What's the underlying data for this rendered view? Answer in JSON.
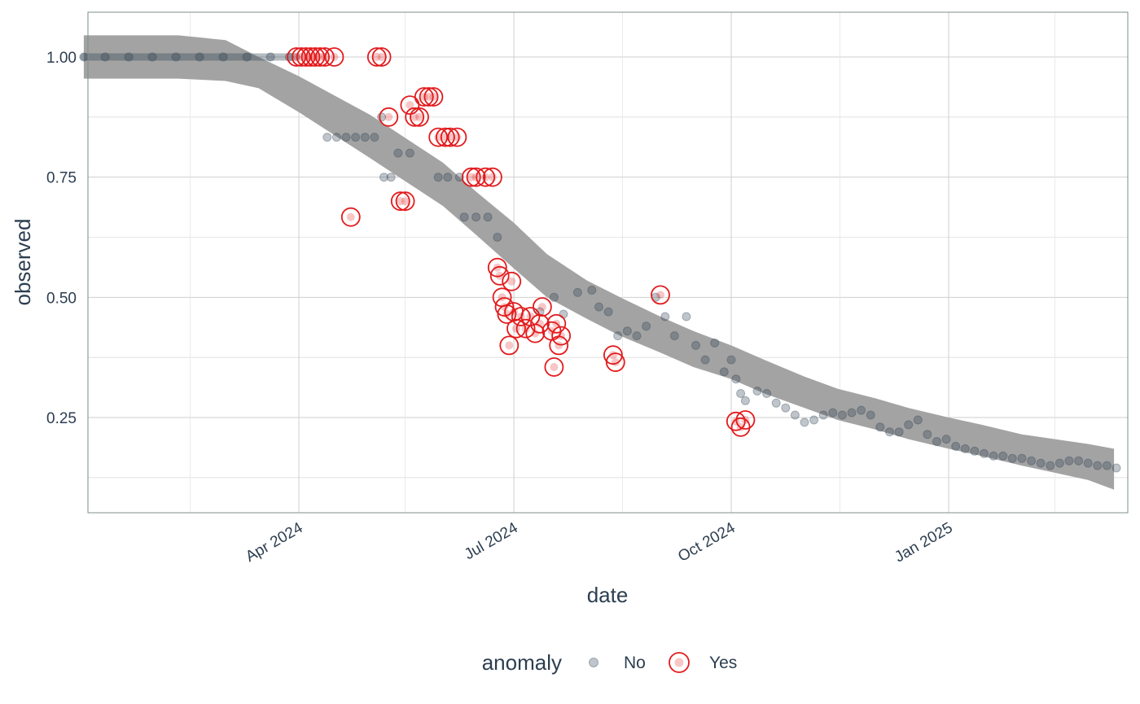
{
  "chart_data": {
    "type": "scatter",
    "xlabel": "date",
    "ylabel": "observed",
    "x_axis": {
      "scale": "date",
      "range": [
        "2024-01-01",
        "2025-03-20"
      ],
      "ticks": [
        {
          "date": "2024-04-01",
          "label": "Apr 2024"
        },
        {
          "date": "2024-07-01",
          "label": "Jul 2024"
        },
        {
          "date": "2024-10-01",
          "label": "Oct 2024"
        },
        {
          "date": "2025-01-01",
          "label": "Jan 2025"
        }
      ]
    },
    "y_axis": {
      "range": [
        0.065,
        1.09
      ],
      "ticks": [
        {
          "value": 0.25,
          "label": "0.25"
        },
        {
          "value": 0.5,
          "label": "0.50"
        },
        {
          "value": 0.75,
          "label": "0.75"
        },
        {
          "value": 1.0,
          "label": "1.00"
        }
      ],
      "minor_ticks": [
        0.125,
        0.375,
        0.625,
        0.875
      ]
    },
    "grid": true,
    "legend": {
      "title": "anomaly",
      "placement": "bottom",
      "entries": [
        {
          "label": "No",
          "color": "#2c3e50"
        },
        {
          "label": "Yes",
          "color": "#e31a1c"
        }
      ]
    },
    "colors": {
      "band": "#a3a3a3",
      "normal": "#2c3e50",
      "anomaly": "#e31a1c",
      "grid": "#d6d6d6"
    },
    "band": [
      {
        "date": "2024-01-01",
        "lo": 0.955,
        "hi": 1.045
      },
      {
        "date": "2024-02-10",
        "lo": 0.955,
        "hi": 1.045
      },
      {
        "date": "2024-03-01",
        "lo": 0.95,
        "hi": 1.035
      },
      {
        "date": "2024-03-15",
        "lo": 0.935,
        "hi": 1.0
      },
      {
        "date": "2024-04-01",
        "lo": 0.885,
        "hi": 0.96
      },
      {
        "date": "2024-05-01",
        "lo": 0.79,
        "hi": 0.88
      },
      {
        "date": "2024-06-01",
        "lo": 0.69,
        "hi": 0.78
      },
      {
        "date": "2024-06-15",
        "lo": 0.63,
        "hi": 0.72
      },
      {
        "date": "2024-07-01",
        "lo": 0.56,
        "hi": 0.655
      },
      {
        "date": "2024-07-15",
        "lo": 0.5,
        "hi": 0.59
      },
      {
        "date": "2024-08-01",
        "lo": 0.455,
        "hi": 0.535
      },
      {
        "date": "2024-08-15",
        "lo": 0.42,
        "hi": 0.5
      },
      {
        "date": "2024-09-01",
        "lo": 0.385,
        "hi": 0.46
      },
      {
        "date": "2024-09-15",
        "lo": 0.355,
        "hi": 0.43
      },
      {
        "date": "2024-10-01",
        "lo": 0.33,
        "hi": 0.4
      },
      {
        "date": "2024-10-15",
        "lo": 0.3,
        "hi": 0.37
      },
      {
        "date": "2024-11-01",
        "lo": 0.27,
        "hi": 0.335
      },
      {
        "date": "2024-11-15",
        "lo": 0.245,
        "hi": 0.31
      },
      {
        "date": "2024-12-01",
        "lo": 0.225,
        "hi": 0.29
      },
      {
        "date": "2024-12-15",
        "lo": 0.205,
        "hi": 0.27
      },
      {
        "date": "2025-01-01",
        "lo": 0.185,
        "hi": 0.25
      },
      {
        "date": "2025-01-15",
        "lo": 0.17,
        "hi": 0.235
      },
      {
        "date": "2025-02-01",
        "lo": 0.15,
        "hi": 0.215
      },
      {
        "date": "2025-02-15",
        "lo": 0.135,
        "hi": 0.205
      },
      {
        "date": "2025-03-01",
        "lo": 0.12,
        "hi": 0.195
      },
      {
        "date": "2025-03-12",
        "lo": 0.1,
        "hi": 0.185
      }
    ],
    "series": [
      {
        "name": "No",
        "points": [
          [
            "2024-01-01",
            1.0
          ],
          [
            "2024-01-10",
            1.0
          ],
          [
            "2024-01-20",
            1.0
          ],
          [
            "2024-01-30",
            1.0
          ],
          [
            "2024-02-09",
            1.0
          ],
          [
            "2024-02-19",
            1.0
          ],
          [
            "2024-02-29",
            1.0
          ],
          [
            "2024-03-10",
            1.0
          ],
          [
            "2024-03-20",
            1.0
          ],
          [
            "2024-03-28",
            1.0
          ],
          [
            "2024-04-13",
            0.833
          ],
          [
            "2024-04-17",
            0.833
          ],
          [
            "2024-04-21",
            0.833
          ],
          [
            "2024-04-25",
            0.833
          ],
          [
            "2024-04-29",
            0.833
          ],
          [
            "2024-05-03",
            0.833
          ],
          [
            "2024-05-06",
            0.875
          ],
          [
            "2024-05-07",
            0.75
          ],
          [
            "2024-05-10",
            0.75
          ],
          [
            "2024-05-13",
            0.8
          ],
          [
            "2024-05-18",
            0.8
          ],
          [
            "2024-05-30",
            0.75
          ],
          [
            "2024-06-03",
            0.75
          ],
          [
            "2024-06-08",
            0.75
          ],
          [
            "2024-06-10",
            0.667
          ],
          [
            "2024-06-15",
            0.667
          ],
          [
            "2024-06-20",
            0.667
          ],
          [
            "2024-06-24",
            0.625
          ],
          [
            "2024-07-12",
            0.47
          ],
          [
            "2024-07-18",
            0.5
          ],
          [
            "2024-07-22",
            0.465
          ],
          [
            "2024-07-28",
            0.51
          ],
          [
            "2024-08-03",
            0.515
          ],
          [
            "2024-08-06",
            0.48
          ],
          [
            "2024-08-10",
            0.47
          ],
          [
            "2024-08-14",
            0.42
          ],
          [
            "2024-08-18",
            0.43
          ],
          [
            "2024-08-22",
            0.42
          ],
          [
            "2024-08-26",
            0.44
          ],
          [
            "2024-08-30",
            0.5
          ],
          [
            "2024-09-03",
            0.46
          ],
          [
            "2024-09-07",
            0.42
          ],
          [
            "2024-09-12",
            0.46
          ],
          [
            "2024-09-16",
            0.4
          ],
          [
            "2024-09-20",
            0.37
          ],
          [
            "2024-09-24",
            0.405
          ],
          [
            "2024-09-28",
            0.345
          ],
          [
            "2024-10-01",
            0.37
          ],
          [
            "2024-10-03",
            0.33
          ],
          [
            "2024-10-05",
            0.3
          ],
          [
            "2024-10-07",
            0.285
          ],
          [
            "2024-10-12",
            0.305
          ],
          [
            "2024-10-16",
            0.3
          ],
          [
            "2024-10-20",
            0.28
          ],
          [
            "2024-10-24",
            0.27
          ],
          [
            "2024-10-28",
            0.255
          ],
          [
            "2024-11-01",
            0.24
          ],
          [
            "2024-11-05",
            0.245
          ],
          [
            "2024-11-09",
            0.255
          ],
          [
            "2024-11-13",
            0.26
          ],
          [
            "2024-11-17",
            0.255
          ],
          [
            "2024-11-21",
            0.26
          ],
          [
            "2024-11-25",
            0.265
          ],
          [
            "2024-11-29",
            0.255
          ],
          [
            "2024-12-03",
            0.23
          ],
          [
            "2024-12-07",
            0.22
          ],
          [
            "2024-12-11",
            0.22
          ],
          [
            "2024-12-15",
            0.235
          ],
          [
            "2024-12-19",
            0.245
          ],
          [
            "2024-12-23",
            0.215
          ],
          [
            "2024-12-27",
            0.2
          ],
          [
            "2024-12-31",
            0.205
          ],
          [
            "2025-01-04",
            0.19
          ],
          [
            "2025-01-08",
            0.185
          ],
          [
            "2025-01-12",
            0.18
          ],
          [
            "2025-01-16",
            0.175
          ],
          [
            "2025-01-20",
            0.17
          ],
          [
            "2025-01-24",
            0.17
          ],
          [
            "2025-01-28",
            0.165
          ],
          [
            "2025-02-01",
            0.165
          ],
          [
            "2025-02-05",
            0.16
          ],
          [
            "2025-02-09",
            0.155
          ],
          [
            "2025-02-13",
            0.15
          ],
          [
            "2025-02-17",
            0.155
          ],
          [
            "2025-02-21",
            0.16
          ],
          [
            "2025-02-25",
            0.16
          ],
          [
            "2025-03-01",
            0.155
          ],
          [
            "2025-03-05",
            0.15
          ],
          [
            "2025-03-09",
            0.15
          ],
          [
            "2025-03-13",
            0.145
          ]
        ]
      },
      {
        "name": "Yes",
        "points": [
          [
            "2024-03-31",
            1.0
          ],
          [
            "2024-04-02",
            1.0
          ],
          [
            "2024-04-04",
            1.0
          ],
          [
            "2024-04-06",
            1.0
          ],
          [
            "2024-04-08",
            1.0
          ],
          [
            "2024-04-10",
            1.0
          ],
          [
            "2024-04-12",
            1.0
          ],
          [
            "2024-04-16",
            1.0
          ],
          [
            "2024-04-23",
            0.667
          ],
          [
            "2024-05-04",
            1.0
          ],
          [
            "2024-05-06",
            1.0
          ],
          [
            "2024-05-09",
            0.875
          ],
          [
            "2024-05-14",
            0.7
          ],
          [
            "2024-05-16",
            0.7
          ],
          [
            "2024-05-18",
            0.9
          ],
          [
            "2024-05-20",
            0.875
          ],
          [
            "2024-05-22",
            0.875
          ],
          [
            "2024-05-24",
            0.917
          ],
          [
            "2024-05-26",
            0.917
          ],
          [
            "2024-05-28",
            0.917
          ],
          [
            "2024-05-30",
            0.833
          ],
          [
            "2024-06-02",
            0.833
          ],
          [
            "2024-06-04",
            0.833
          ],
          [
            "2024-06-07",
            0.833
          ],
          [
            "2024-06-13",
            0.75
          ],
          [
            "2024-06-15",
            0.75
          ],
          [
            "2024-06-19",
            0.75
          ],
          [
            "2024-06-22",
            0.75
          ],
          [
            "2024-06-24",
            0.562
          ],
          [
            "2024-06-25",
            0.545
          ],
          [
            "2024-06-26",
            0.5
          ],
          [
            "2024-06-27",
            0.48
          ],
          [
            "2024-06-28",
            0.465
          ],
          [
            "2024-06-29",
            0.4
          ],
          [
            "2024-06-30",
            0.533
          ],
          [
            "2024-07-01",
            0.47
          ],
          [
            "2024-07-02",
            0.435
          ],
          [
            "2024-07-04",
            0.46
          ],
          [
            "2024-07-06",
            0.435
          ],
          [
            "2024-07-08",
            0.46
          ],
          [
            "2024-07-10",
            0.425
          ],
          [
            "2024-07-12",
            0.445
          ],
          [
            "2024-07-13",
            0.48
          ],
          [
            "2024-07-17",
            0.43
          ],
          [
            "2024-07-19",
            0.445
          ],
          [
            "2024-07-20",
            0.4
          ],
          [
            "2024-07-21",
            0.42
          ],
          [
            "2024-07-18",
            0.355
          ],
          [
            "2024-08-12",
            0.38
          ],
          [
            "2024-08-13",
            0.365
          ],
          [
            "2024-09-01",
            0.505
          ],
          [
            "2024-10-03",
            0.242
          ],
          [
            "2024-10-05",
            0.23
          ],
          [
            "2024-10-07",
            0.245
          ]
        ]
      }
    ]
  }
}
